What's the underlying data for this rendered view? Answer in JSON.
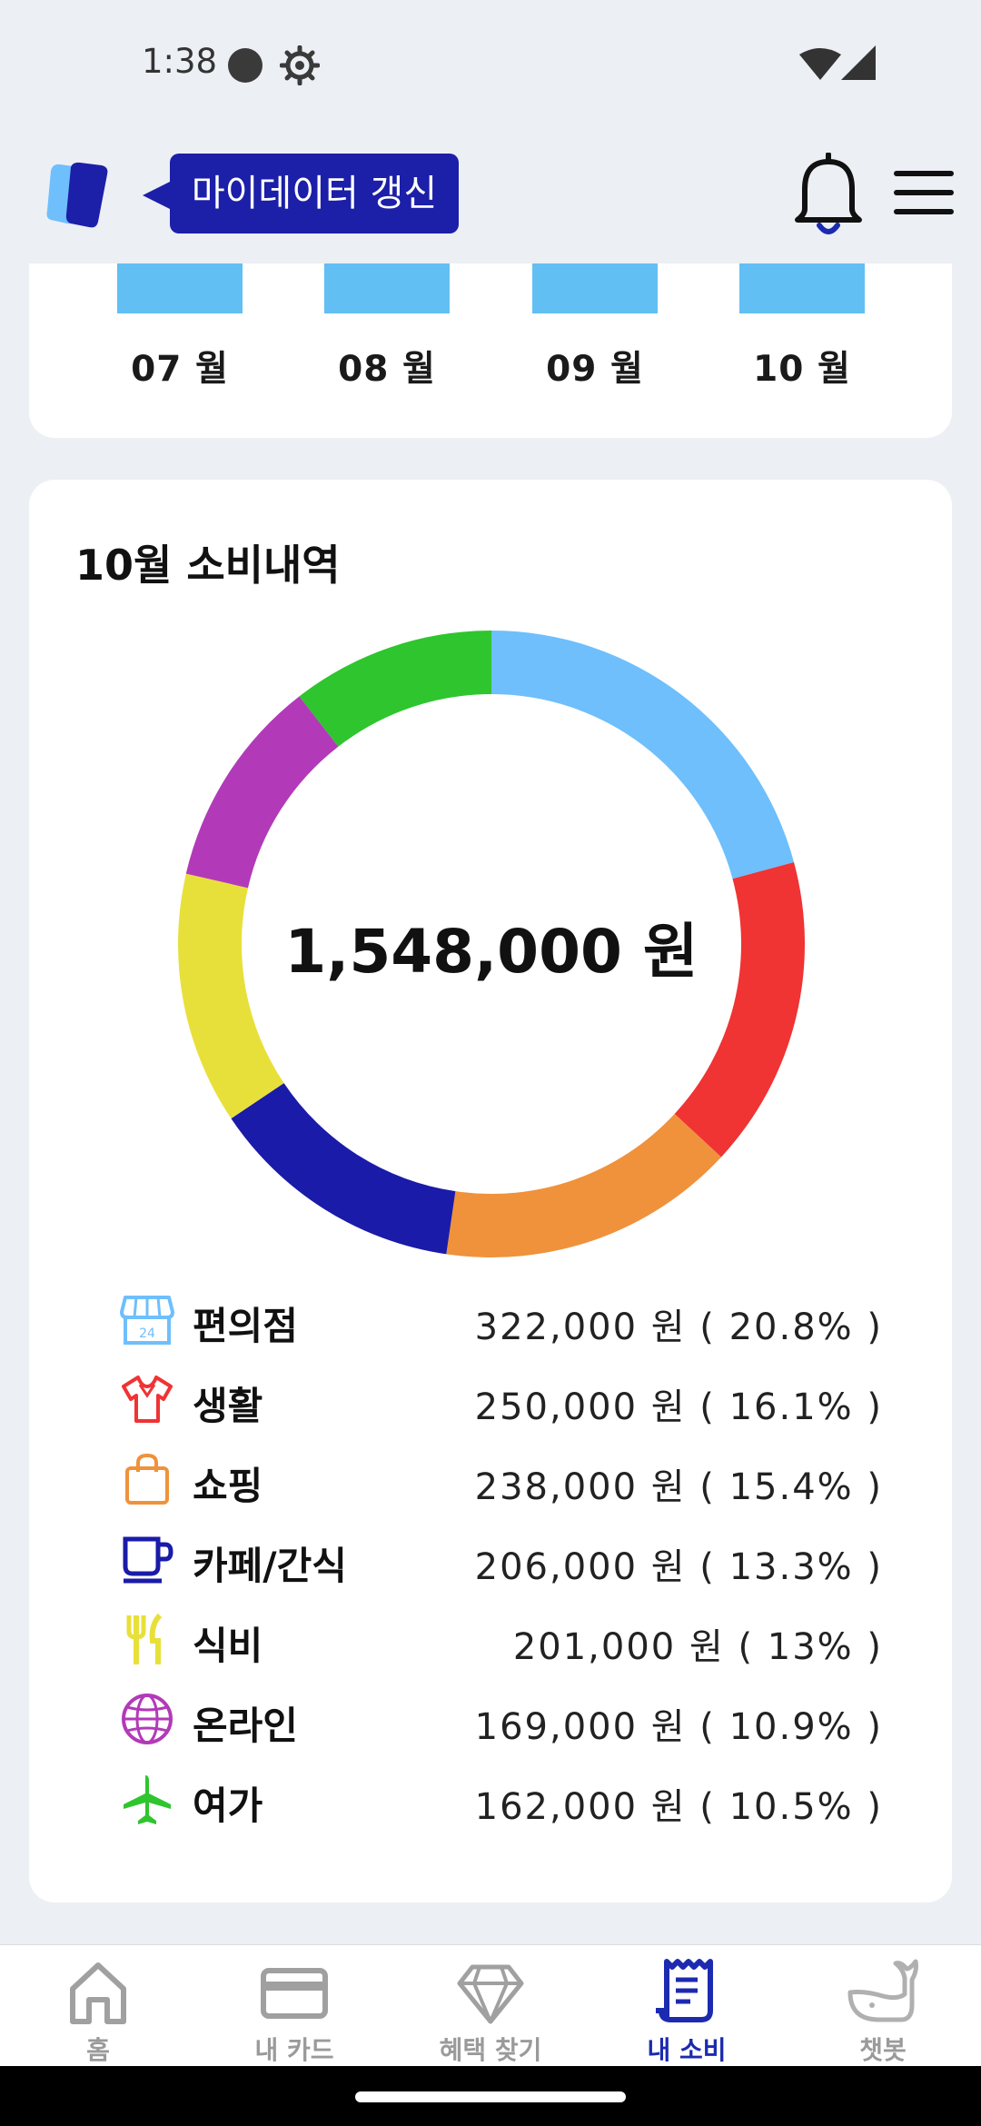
{
  "status_bar": {
    "time": "1:38"
  },
  "header": {
    "mydata_label": "마이데이터 갱신"
  },
  "months": [
    "07 월",
    "08 월",
    "09 월",
    "10 월"
  ],
  "spending": {
    "title": "10월 소비내역",
    "total": "1,548,000 원",
    "categories": [
      {
        "name": "편의점",
        "amount": "322,000 원 ( 20.8% )",
        "percent": 20.8,
        "color": "#6ebffc",
        "icon": "convenience-store-icon"
      },
      {
        "name": "생활",
        "amount": "250,000 원 ( 16.1% )",
        "percent": 16.1,
        "color": "#f03333",
        "icon": "tshirt-icon"
      },
      {
        "name": "쇼핑",
        "amount": "238,000 원 ( 15.4% )",
        "percent": 15.4,
        "color": "#ef923b",
        "icon": "shopping-bag-icon"
      },
      {
        "name": "카페/간식",
        "amount": "206,000 원 ( 13.3% )",
        "percent": 13.3,
        "color": "#1a1ba8",
        "icon": "coffee-cup-icon"
      },
      {
        "name": "식비",
        "amount": "201,000 원 ( 13% )",
        "percent": 13.0,
        "color": "#e8e03a",
        "icon": "fork-knife-icon"
      },
      {
        "name": "온라인",
        "amount": "169,000 원 ( 10.9% )",
        "percent": 10.9,
        "color": "#b23ab8",
        "icon": "globe-icon"
      },
      {
        "name": "여가",
        "amount": "162,000 원 ( 10.5% )",
        "percent": 10.5,
        "color": "#2ec52e",
        "icon": "airplane-icon"
      }
    ]
  },
  "bottom_nav": {
    "items": [
      {
        "label": "홈",
        "icon": "home-icon",
        "active": false
      },
      {
        "label": "내 카드",
        "icon": "card-icon",
        "active": false
      },
      {
        "label": "혜택 찾기",
        "icon": "diamond-icon",
        "active": false
      },
      {
        "label": "내 소비",
        "icon": "receipt-icon",
        "active": true
      },
      {
        "label": "챗봇",
        "icon": "whale-icon",
        "active": false
      }
    ]
  },
  "colors": {
    "accent": "#1c1fa8",
    "bar": "#61bff3",
    "active_nav": "#1c2ab0"
  }
}
